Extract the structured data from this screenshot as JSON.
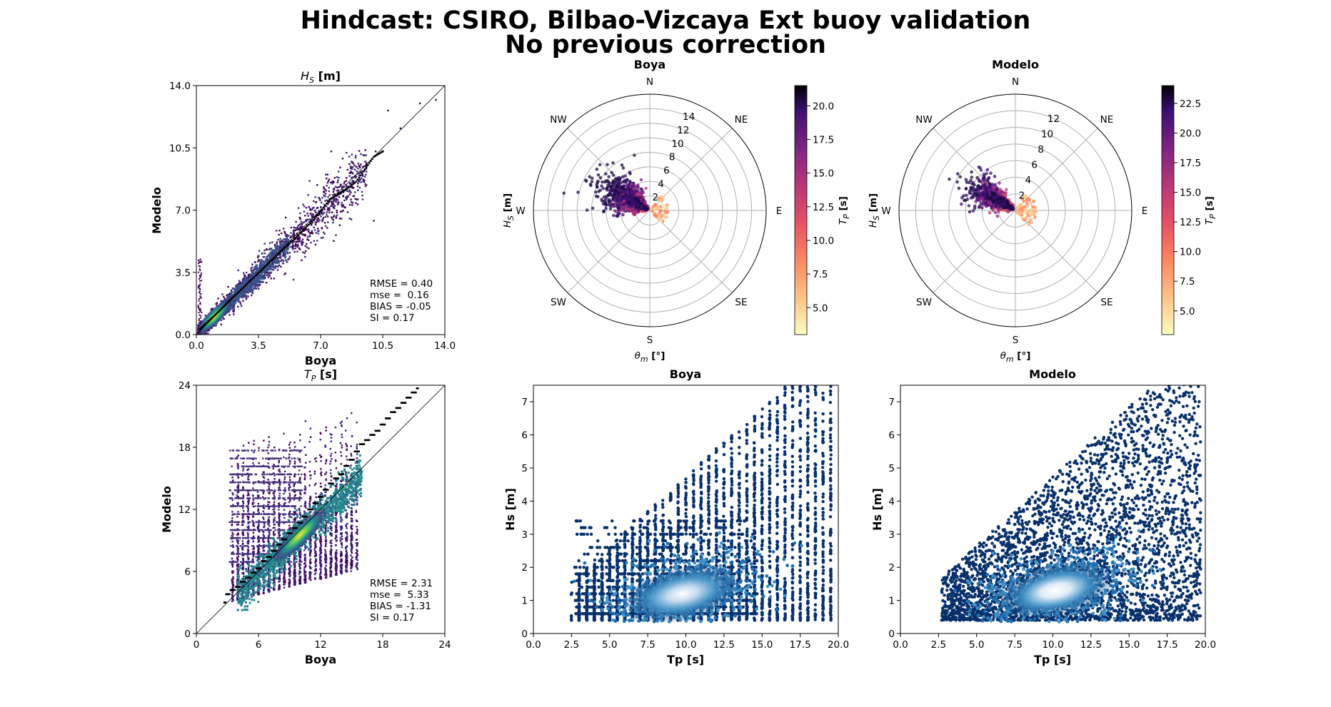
{
  "title_line1": "Hindcast: CSIRO, Bilbao-Vizcaya Ext buoy validation",
  "title_line2": "No previous correction",
  "colors": {
    "qq_line": "#000000",
    "identity_line": "#000000",
    "density_cmap": "viridis",
    "polar_cmap": "magma_r",
    "scatter_cmap": "Blues_r",
    "scatter_dark": "#08306b",
    "polar_grid": "#b0b0b0"
  },
  "chart_data": [
    {
      "id": "hs-validation",
      "type": "scatter",
      "title": "H_S [m]",
      "title_main": "H",
      "title_sub": "S",
      "title_unit": " [m]",
      "xlabel": "Boya",
      "ylabel": "Modelo",
      "xlim": [
        0,
        14
      ],
      "ylim": [
        0,
        14
      ],
      "xticks": [
        "0.0",
        "3.5",
        "7.0",
        "10.5",
        "14.0"
      ],
      "yticks": [
        "0.0",
        "3.5",
        "7.0",
        "10.5",
        "14.0"
      ],
      "grid": false,
      "stats": [
        "RMSE = 0.40",
        "mse =  0.16",
        "BIAS = -0.05",
        "SI = 0.17"
      ],
      "quantiles": {
        "x": [
          0.2,
          0.5,
          1.0,
          1.5,
          2.0,
          2.5,
          3.0,
          3.5,
          4.0,
          4.5,
          5.0,
          5.5,
          6.0,
          6.5,
          7.0,
          7.5,
          8.0,
          8.5,
          9.0,
          9.5,
          10.0,
          10.5
        ],
        "y": [
          0.3,
          0.6,
          1.05,
          1.55,
          2.05,
          2.5,
          3.0,
          3.45,
          3.95,
          4.4,
          4.9,
          5.35,
          5.85,
          6.35,
          6.9,
          7.6,
          7.9,
          8.2,
          8.6,
          9.3,
          10.0,
          10.3
        ]
      }
    },
    {
      "id": "hs-polar-boya",
      "type": "scatter",
      "polar": true,
      "title": "Boya",
      "xlabel": "θm [°]",
      "ylabel": "HS [m]",
      "rlabels": [
        "2",
        "4",
        "6",
        "8",
        "10",
        "12",
        "14"
      ],
      "rmax": 16,
      "directions": [
        "N",
        "NE",
        "E",
        "SE",
        "S",
        "SW",
        "W",
        "NW"
      ],
      "colorbar_label": "TP [s]",
      "colorbar_ticks": [
        "5.0",
        "7.5",
        "10.0",
        "12.5",
        "15.0",
        "17.5",
        "20.0"
      ],
      "colorbar_range": [
        3.0,
        21.5
      ]
    },
    {
      "id": "hs-polar-modelo",
      "type": "scatter",
      "polar": true,
      "title": "Modelo",
      "xlabel": "θm [°]",
      "ylabel": "HS [m]",
      "rlabels": [
        "2",
        "4",
        "6",
        "8",
        "10",
        "12"
      ],
      "rmax": 14,
      "directions": [
        "N",
        "NE",
        "E",
        "SE",
        "S",
        "SW",
        "W",
        "NW"
      ],
      "colorbar_label": "TP [s]",
      "colorbar_ticks": [
        "5.0",
        "7.5",
        "10.0",
        "12.5",
        "15.0",
        "17.5",
        "20.0",
        "22.5"
      ],
      "colorbar_range": [
        3.0,
        24.0
      ]
    },
    {
      "id": "tp-validation",
      "type": "scatter",
      "title": "T_P [s]",
      "title_main": "T",
      "title_sub": "P",
      "title_unit": " [s]",
      "xlabel": "Boya",
      "ylabel": "Modelo",
      "xlim": [
        0,
        24
      ],
      "ylim": [
        0,
        24
      ],
      "xticks": [
        "0",
        "6",
        "12",
        "18",
        "24"
      ],
      "yticks": [
        "0",
        "6",
        "12",
        "18",
        "24"
      ],
      "grid": false,
      "stats": [
        "RMSE = 2.31",
        "mse =  5.33",
        "BIAS = -1.31",
        "SI = 0.17"
      ],
      "quantiles": {
        "x": [
          2.7,
          3.0,
          3.5,
          4.0,
          4.5,
          5.0,
          5.5,
          6.0,
          6.5,
          7.0,
          7.5,
          8.0,
          8.5,
          9.0,
          9.5,
          10.0,
          10.5,
          11.0,
          11.5,
          12.0,
          12.5,
          13.0,
          13.5,
          14.0,
          14.5,
          15.0,
          15.5,
          16.0,
          16.5,
          17.0,
          17.5,
          18.0,
          18.5,
          19.0,
          19.5,
          20.0,
          20.5,
          21.0,
          21.5
        ],
        "y": [
          3.0,
          3.8,
          4.2,
          4.5,
          5.0,
          5.4,
          5.9,
          6.3,
          7.0,
          7.4,
          8.0,
          8.6,
          9.1,
          9.7,
          10.2,
          10.7,
          11.3,
          12.0,
          12.6,
          13.2,
          13.9,
          14.5,
          15.0,
          15.4,
          16.2,
          16.8,
          17.6,
          18.3,
          18.7,
          19.2,
          19.6,
          20.2,
          20.8,
          21.4,
          21.8,
          22.3,
          22.8,
          23.3,
          23.7
        ]
      }
    },
    {
      "id": "hs-tp-boya",
      "type": "scatter",
      "title": "Boya",
      "xlabel": "Tp [s]",
      "ylabel": "Hs [m]",
      "xlim": [
        0,
        20
      ],
      "ylim": [
        0,
        7.5
      ],
      "xticks": [
        "0.0",
        "2.5",
        "5.0",
        "7.5",
        "10.0",
        "12.5",
        "15.0",
        "17.5",
        "20.0"
      ],
      "yticks": [
        "0",
        "1",
        "2",
        "3",
        "4",
        "5",
        "6",
        "7"
      ],
      "grid": false,
      "density_peak": {
        "x": 9.8,
        "y": 1.2
      }
    },
    {
      "id": "hs-tp-modelo",
      "type": "scatter",
      "title": "Modelo",
      "xlabel": "Tp [s]",
      "ylabel": "Hs [m]",
      "xlim": [
        0,
        20
      ],
      "ylim": [
        0,
        7.5
      ],
      "xticks": [
        "0.0",
        "2.5",
        "5.0",
        "7.5",
        "10.0",
        "12.5",
        "15.0",
        "17.5",
        "20.0"
      ],
      "yticks": [
        "0",
        "1",
        "2",
        "3",
        "4",
        "5",
        "6",
        "7"
      ],
      "grid": false,
      "density_peak": {
        "x": 10.2,
        "y": 1.3
      }
    }
  ]
}
